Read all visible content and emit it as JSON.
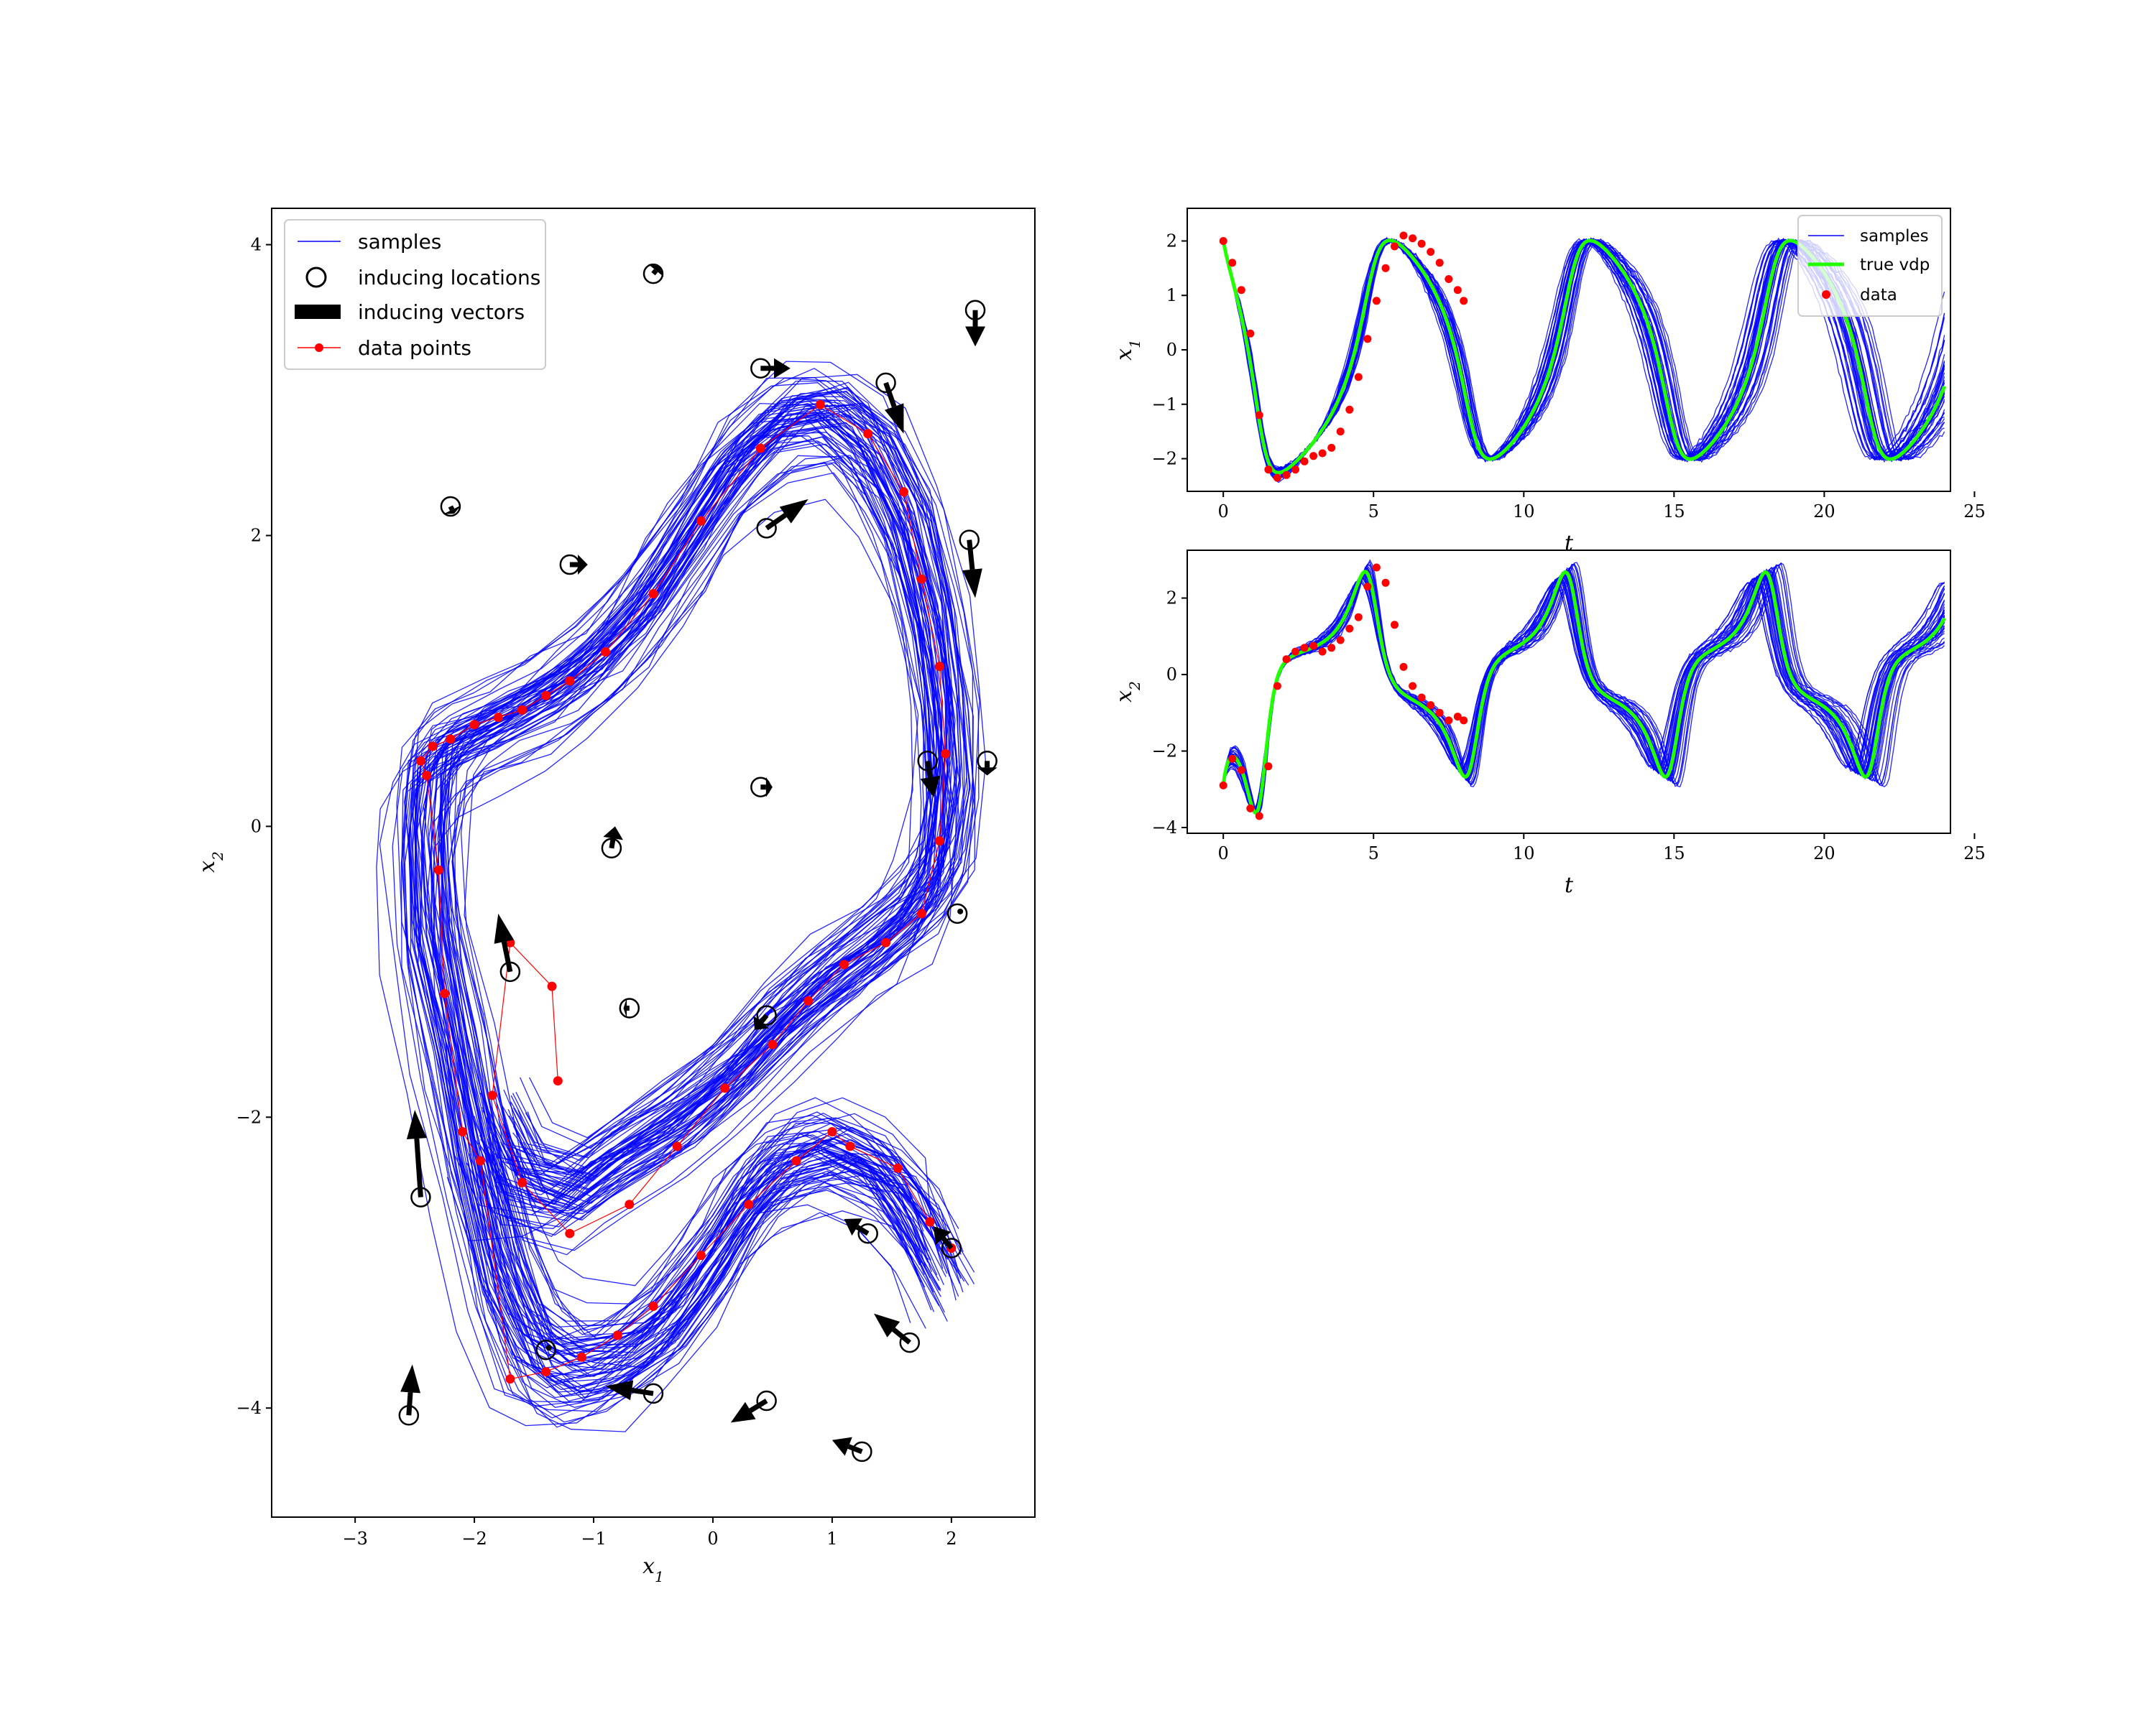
{
  "chart_data": [
    {
      "type": "line",
      "panel": "phase-portrait",
      "title": "",
      "xlabel": "x1",
      "ylabel": "x2",
      "xlim": [
        -3.7,
        2.7
      ],
      "ylim": [
        -4.75,
        4.25
      ],
      "x_ticks": [
        -3,
        -2,
        -1,
        0,
        1,
        2
      ],
      "x_tick_labels": [
        "−3",
        "−2",
        "−1",
        "0",
        "1",
        "2"
      ],
      "y_ticks": [
        -4,
        -2,
        0,
        2,
        4
      ],
      "y_tick_labels": [
        "−4",
        "−2",
        "0",
        "2",
        "4"
      ],
      "grid": false,
      "legend": {
        "placement": "top-left",
        "entries": [
          "samples",
          "inducing locations",
          "inducing vectors",
          "data points"
        ]
      },
      "colors": {
        "samples": "#0000ff",
        "data": "#ff0000",
        "inducing": "#000000"
      },
      "series": [
        {
          "name": "data points",
          "x": [
            2.0,
            1.82,
            1.55,
            1.15,
            1.0,
            0.7,
            0.3,
            -0.1,
            -0.5,
            -0.8,
            -1.1,
            -1.4,
            -1.7,
            -1.95,
            -2.1,
            -2.25,
            -2.3,
            -2.4,
            -2.45,
            -2.35,
            -2.2,
            -2.0,
            -1.8,
            -1.6,
            -1.4,
            -1.2,
            -0.9,
            -0.5,
            -0.1,
            0.4,
            0.9,
            1.3,
            1.6,
            1.75,
            1.9,
            1.95,
            1.9,
            1.75,
            1.45,
            1.1,
            0.8,
            0.5,
            0.1,
            -0.3,
            -0.7,
            -1.2,
            -1.6,
            -1.85,
            -1.7,
            -1.35,
            -1.3
          ],
          "y": [
            -2.9,
            -2.72,
            -2.35,
            -2.2,
            -2.1,
            -2.3,
            -2.6,
            -2.95,
            -3.3,
            -3.5,
            -3.65,
            -3.75,
            -3.8,
            -2.3,
            -2.1,
            -1.15,
            -0.3,
            0.35,
            0.45,
            0.55,
            0.6,
            0.7,
            0.75,
            0.8,
            0.9,
            1.0,
            1.2,
            1.6,
            2.1,
            2.6,
            2.9,
            2.7,
            2.3,
            1.7,
            1.1,
            0.5,
            -0.1,
            -0.6,
            -0.8,
            -0.95,
            -1.2,
            -1.5,
            -1.8,
            -2.2,
            -2.6,
            -2.8,
            -2.45,
            -1.85,
            -0.8,
            -1.1,
            -1.75
          ]
        }
      ],
      "inducing": [
        {
          "x": -0.5,
          "y": 3.8,
          "u": 0.05,
          "v": 0.05
        },
        {
          "x": 2.2,
          "y": 3.55,
          "u": 0.0,
          "v": -0.25
        },
        {
          "x": 0.4,
          "y": 3.15,
          "u": 0.25,
          "v": 0.0
        },
        {
          "x": 1.45,
          "y": 3.05,
          "u": 0.15,
          "v": -0.35
        },
        {
          "x": -2.2,
          "y": 2.2,
          "u": 0.03,
          "v": -0.05
        },
        {
          "x": 2.15,
          "y": 1.97,
          "u": 0.05,
          "v": -0.4
        },
        {
          "x": 0.45,
          "y": 2.05,
          "u": 0.35,
          "v": 0.2
        },
        {
          "x": -1.2,
          "y": 1.8,
          "u": 0.15,
          "v": 0.0
        },
        {
          "x": 0.4,
          "y": 0.27,
          "u": 0.1,
          "v": 0.0
        },
        {
          "x": 1.8,
          "y": 0.45,
          "u": 0.05,
          "v": -0.25
        },
        {
          "x": 2.3,
          "y": 0.45,
          "u": 0.0,
          "v": -0.1
        },
        {
          "x": -0.85,
          "y": -0.15,
          "u": 0.03,
          "v": 0.15
        },
        {
          "x": 2.05,
          "y": -0.6,
          "u": 0.0,
          "v": 0.0
        },
        {
          "x": -1.7,
          "y": -1.0,
          "u": -0.1,
          "v": 0.4
        },
        {
          "x": -0.7,
          "y": -1.25,
          "u": -0.05,
          "v": 0.0
        },
        {
          "x": 0.45,
          "y": -1.3,
          "u": -0.1,
          "v": -0.1
        },
        {
          "x": -2.45,
          "y": -2.55,
          "u": -0.05,
          "v": 0.6
        },
        {
          "x": 2.0,
          "y": -2.9,
          "u": -0.15,
          "v": 0.15
        },
        {
          "x": 1.3,
          "y": -2.8,
          "u": -0.2,
          "v": 0.1
        },
        {
          "x": 1.65,
          "y": -3.55,
          "u": -0.3,
          "v": 0.2
        },
        {
          "x": -1.4,
          "y": -3.6,
          "u": 0.0,
          "v": 0.0
        },
        {
          "x": -0.5,
          "y": -3.9,
          "u": -0.4,
          "v": 0.05
        },
        {
          "x": 0.45,
          "y": -3.95,
          "u": -0.3,
          "v": -0.15
        },
        {
          "x": 1.25,
          "y": -4.3,
          "u": -0.25,
          "v": 0.08
        },
        {
          "x": -2.55,
          "y": -4.05,
          "u": 0.03,
          "v": 0.35
        }
      ]
    },
    {
      "type": "line",
      "panel": "x1-vs-t",
      "xlabel": "t",
      "ylabel": "x1",
      "xlim": [
        -1.2,
        24.2
      ],
      "ylim": [
        -2.6,
        2.6
      ],
      "x_ticks": [
        0,
        5,
        10,
        15,
        20,
        25
      ],
      "x_tick_labels": [
        "0",
        "5",
        "10",
        "15",
        "20",
        "25"
      ],
      "y_ticks": [
        -2,
        -1,
        0,
        1,
        2
      ],
      "y_tick_labels": [
        "−2",
        "−1",
        "0",
        "1",
        "2"
      ],
      "legend": {
        "placement": "top-right",
        "entries": [
          "samples",
          "true vdp",
          "data"
        ]
      },
      "colors": {
        "samples": "#0000ff",
        "true vdp": "#22ff00",
        "data": "#ff0000"
      },
      "data_t": [
        0.0,
        0.3,
        0.6,
        0.9,
        1.2,
        1.5,
        1.8,
        2.1,
        2.4,
        2.7,
        3.0,
        3.3,
        3.6,
        3.9,
        4.2,
        4.5,
        4.8,
        5.1,
        5.4,
        5.7,
        6.0,
        6.3,
        6.6,
        6.9,
        7.2,
        7.5,
        7.8,
        8.0
      ],
      "data_x1": [
        2.0,
        1.6,
        1.1,
        0.3,
        -1.2,
        -2.2,
        -2.35,
        -2.3,
        -2.2,
        -2.05,
        -1.95,
        -1.9,
        -1.8,
        -1.5,
        -1.1,
        -0.5,
        0.2,
        0.9,
        1.5,
        1.9,
        2.1,
        2.05,
        1.95,
        1.8,
        1.6,
        1.3,
        1.1,
        0.9
      ]
    },
    {
      "type": "line",
      "panel": "x2-vs-t",
      "xlabel": "t",
      "ylabel": "x2",
      "xlim": [
        -1.2,
        24.2
      ],
      "ylim": [
        -4.15,
        3.25
      ],
      "x_ticks": [
        0,
        5,
        10,
        15,
        20,
        25
      ],
      "x_tick_labels": [
        "0",
        "5",
        "10",
        "15",
        "20",
        "25"
      ],
      "y_ticks": [
        -4,
        -2,
        0,
        2
      ],
      "y_tick_labels": [
        "−4",
        "−2",
        "0",
        "2"
      ],
      "colors": {
        "samples": "#0000ff",
        "true vdp": "#22ff00",
        "data": "#ff0000"
      },
      "data_t": [
        0.0,
        0.3,
        0.6,
        0.9,
        1.2,
        1.5,
        1.8,
        2.1,
        2.4,
        2.7,
        3.0,
        3.3,
        3.6,
        3.9,
        4.2,
        4.5,
        4.8,
        5.1,
        5.4,
        5.7,
        6.0,
        6.3,
        6.6,
        6.9,
        7.2,
        7.5,
        7.8,
        8.0
      ],
      "data_x2": [
        -2.9,
        -2.2,
        -2.5,
        -3.5,
        -3.7,
        -2.4,
        -0.3,
        0.4,
        0.6,
        0.7,
        0.75,
        0.6,
        0.7,
        0.9,
        1.2,
        1.5,
        2.3,
        2.8,
        2.4,
        1.3,
        0.2,
        -0.3,
        -0.6,
        -0.8,
        -1.0,
        -1.2,
        -1.1,
        -1.2
      ]
    }
  ]
}
